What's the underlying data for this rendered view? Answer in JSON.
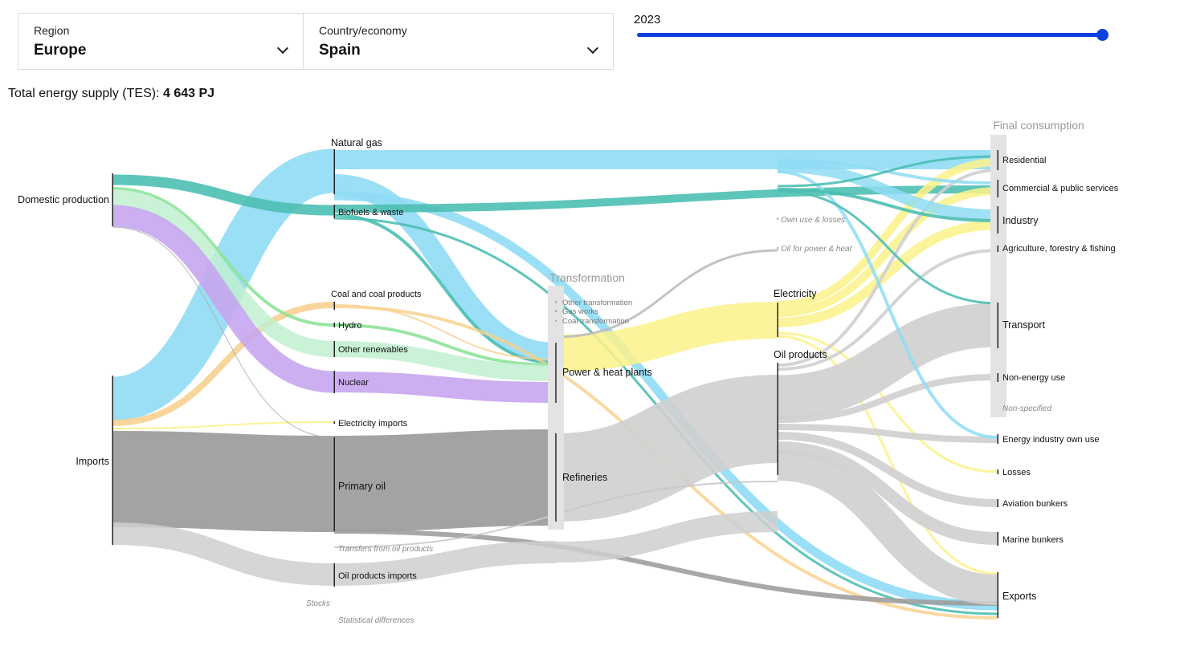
{
  "filters": {
    "region": {
      "label": "Region",
      "value": "Europe"
    },
    "country": {
      "label": "Country/economy",
      "value": "Spain"
    }
  },
  "year": {
    "label": "2023",
    "value": 2023
  },
  "tes": {
    "prefix": "Total energy supply (TES): ",
    "value": "4 643 PJ"
  },
  "chart_data": {
    "type": "sankey",
    "title": "Total energy supply (TES): 4 643 PJ",
    "unit": "PJ",
    "columns": {
      "sources": [
        "Domestic production",
        "Imports"
      ],
      "primary": [
        "Natural gas",
        "Biofuels & waste",
        "Coal and coal products",
        "Hydro",
        "Other renewables",
        "Nuclear",
        "Electricity imports",
        "Primary oil",
        "Transfers from oil products",
        "Oil products imports",
        "Stocks",
        "Statistical differences"
      ],
      "transformation": [
        "Transformation",
        "Other transformation",
        "Gas works",
        "Coal transformation",
        "Power & heat plants",
        "Refineries"
      ],
      "secondary": [
        "Own use & losses",
        "Oil for power & heat",
        "Electricity",
        "Oil products"
      ],
      "final": [
        "Final consumption",
        "Residential",
        "Commercial & public services",
        "Industry",
        "Agriculture, forestry & fishing",
        "Transport",
        "Non-energy use",
        "Non-specified",
        "Energy industry own use",
        "Losses",
        "Aviation bunkers",
        "Marine bunkers",
        "Exports"
      ]
    },
    "colors": {
      "natural_gas": "#8fdcf5",
      "biofuels": "#4cbfb3",
      "renewables": "#bff0cf",
      "hydro": "#8ee39a",
      "nuclear": "#c7a6ee",
      "coal": "#f7cf8a",
      "oil_primary": "#9e9e9e",
      "oil_products": "#cfcfcf",
      "electricity": "#fbf28a"
    },
    "links": [
      {
        "source": "Domestic production",
        "target": "Biofuels & waste",
        "value": 280
      },
      {
        "source": "Domestic production",
        "target": "Hydro",
        "value": 30
      },
      {
        "source": "Domestic production",
        "target": "Other renewables",
        "value": 250
      },
      {
        "source": "Domestic production",
        "target": "Nuclear",
        "value": 410
      },
      {
        "source": "Imports",
        "target": "Natural gas",
        "value": 1050
      },
      {
        "source": "Imports",
        "target": "Coal and coal products",
        "value": 100
      },
      {
        "source": "Imports",
        "target": "Primary oil",
        "value": 2150
      },
      {
        "source": "Imports",
        "target": "Oil products imports",
        "value": 540
      },
      {
        "source": "Natural gas",
        "target": "Final consumption",
        "value": 360
      },
      {
        "source": "Natural gas",
        "target": "Power & heat plants",
        "value": 300
      },
      {
        "source": "Natural gas",
        "target": "Exports",
        "value": 180
      },
      {
        "source": "Nuclear",
        "target": "Power & heat plants",
        "value": 410
      },
      {
        "source": "Other renewables",
        "target": "Power & heat plants",
        "value": 240
      },
      {
        "source": "Primary oil",
        "target": "Refineries",
        "value": 2150
      },
      {
        "source": "Power & heat plants",
        "target": "Electricity",
        "value": 740
      },
      {
        "source": "Refineries",
        "target": "Oil products",
        "value": 2000
      },
      {
        "source": "Oil products",
        "target": "Transport",
        "value": 900
      },
      {
        "source": "Oil products",
        "target": "Marine bunkers",
        "value": 140
      },
      {
        "source": "Oil products",
        "target": "Exports",
        "value": 560
      }
    ]
  }
}
